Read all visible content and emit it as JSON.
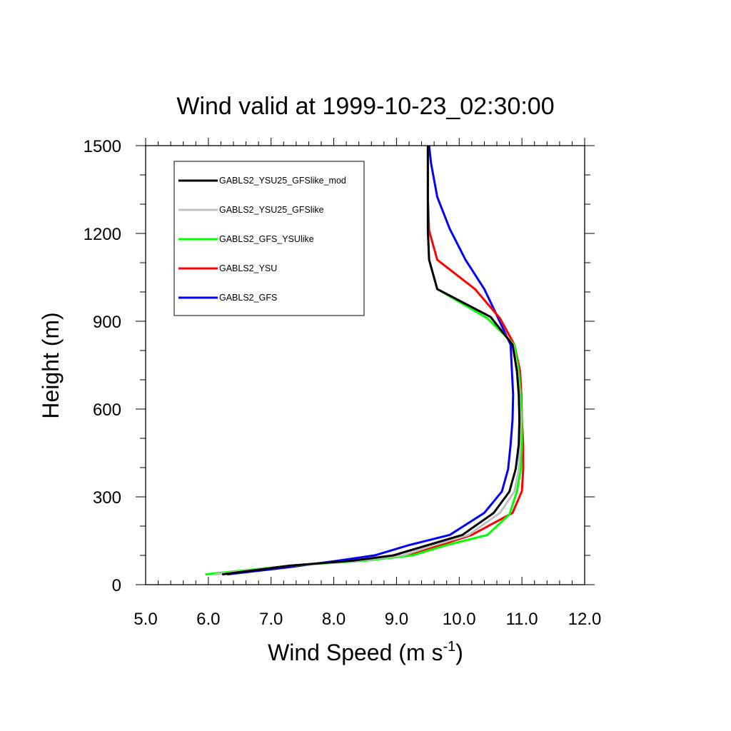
{
  "chart_data": {
    "type": "line",
    "title": "Wind valid at 1999-10-23_02:30:00",
    "xlabel": "Wind Speed (m s",
    "xlabel_sup": "-1",
    "xlabel_close": ")",
    "ylabel": "Height (m)",
    "xlim": [
      5.0,
      12.0
    ],
    "ylim": [
      0,
      1500
    ],
    "x_ticks": [
      "5.0",
      "6.0",
      "7.0",
      "8.0",
      "9.0",
      "10.0",
      "11.0",
      "12.0"
    ],
    "y_ticks": [
      "0",
      "300",
      "600",
      "900",
      "1200",
      "1500"
    ],
    "legend_position": "top-left",
    "series": [
      {
        "name": "GABLS2_YSU25_GFSlike_mod",
        "color": "#000000",
        "points": [
          [
            6.22,
            35
          ],
          [
            7.3,
            65
          ],
          [
            8.3,
            82
          ],
          [
            8.95,
            100
          ],
          [
            9.5,
            135
          ],
          [
            10.05,
            170
          ],
          [
            10.55,
            245
          ],
          [
            10.8,
            318
          ],
          [
            10.9,
            395
          ],
          [
            10.95,
            480
          ],
          [
            10.96,
            565
          ],
          [
            10.95,
            650
          ],
          [
            10.92,
            730
          ],
          [
            10.85,
            820
          ],
          [
            10.5,
            915
          ],
          [
            9.65,
            1010
          ],
          [
            9.52,
            1110
          ],
          [
            9.5,
            1210
          ],
          [
            9.5,
            1320
          ],
          [
            9.5,
            1440
          ],
          [
            9.5,
            1500
          ]
        ]
      },
      {
        "name": "GABLS2_YSU25_GFSlike",
        "color": "#c0c0c0",
        "points": [
          [
            6.1,
            35
          ],
          [
            7.3,
            65
          ],
          [
            8.4,
            82
          ],
          [
            9.1,
            100
          ],
          [
            9.6,
            135
          ],
          [
            10.15,
            170
          ],
          [
            10.65,
            245
          ],
          [
            10.88,
            318
          ],
          [
            10.95,
            395
          ],
          [
            10.97,
            480
          ],
          [
            10.98,
            565
          ],
          [
            10.96,
            650
          ],
          [
            10.93,
            730
          ],
          [
            10.86,
            820
          ],
          [
            10.5,
            915
          ],
          [
            9.65,
            1010
          ],
          [
            9.52,
            1110
          ],
          [
            9.5,
            1210
          ],
          [
            9.5,
            1320
          ],
          [
            9.5,
            1440
          ],
          [
            9.5,
            1500
          ]
        ]
      },
      {
        "name": "GABLS2_GFS_YSUlike",
        "color": "#00ff00",
        "points": [
          [
            5.95,
            35
          ],
          [
            7.3,
            65
          ],
          [
            8.5,
            82
          ],
          [
            9.25,
            100
          ],
          [
            9.8,
            135
          ],
          [
            10.45,
            170
          ],
          [
            10.8,
            240
          ],
          [
            10.92,
            318
          ],
          [
            10.98,
            395
          ],
          [
            11.0,
            480
          ],
          [
            11.0,
            565
          ],
          [
            10.98,
            650
          ],
          [
            10.95,
            730
          ],
          [
            10.88,
            820
          ],
          [
            10.45,
            910
          ],
          [
            9.65,
            1010
          ],
          [
            9.52,
            1110
          ],
          [
            9.5,
            1210
          ],
          [
            9.5,
            1320
          ],
          [
            9.5,
            1440
          ],
          [
            9.5,
            1500
          ]
        ]
      },
      {
        "name": "GABLS2_YSU",
        "color": "#ff0000",
        "points": [
          [
            6.1,
            35
          ],
          [
            7.3,
            65
          ],
          [
            8.4,
            82
          ],
          [
            9.15,
            100
          ],
          [
            9.7,
            135
          ],
          [
            10.2,
            170
          ],
          [
            10.85,
            245
          ],
          [
            11.0,
            320
          ],
          [
            11.02,
            395
          ],
          [
            11.02,
            480
          ],
          [
            11.0,
            565
          ],
          [
            10.99,
            650
          ],
          [
            10.97,
            730
          ],
          [
            10.88,
            820
          ],
          [
            10.65,
            910
          ],
          [
            10.25,
            1010
          ],
          [
            9.65,
            1110
          ],
          [
            9.52,
            1210
          ],
          [
            9.5,
            1320
          ],
          [
            9.5,
            1440
          ],
          [
            9.5,
            1500
          ]
        ]
      },
      {
        "name": "GABLS2_GFS",
        "color": "#0000ff",
        "points": [
          [
            6.3,
            35
          ],
          [
            7.3,
            60
          ],
          [
            8.0,
            80
          ],
          [
            8.65,
            100
          ],
          [
            9.2,
            135
          ],
          [
            9.85,
            170
          ],
          [
            10.4,
            245
          ],
          [
            10.68,
            318
          ],
          [
            10.78,
            395
          ],
          [
            10.82,
            480
          ],
          [
            10.85,
            565
          ],
          [
            10.86,
            650
          ],
          [
            10.84,
            730
          ],
          [
            10.82,
            820
          ],
          [
            10.6,
            920
          ],
          [
            10.4,
            1010
          ],
          [
            10.1,
            1110
          ],
          [
            9.85,
            1215
          ],
          [
            9.65,
            1325
          ],
          [
            9.55,
            1440
          ],
          [
            9.52,
            1500
          ]
        ]
      }
    ]
  }
}
